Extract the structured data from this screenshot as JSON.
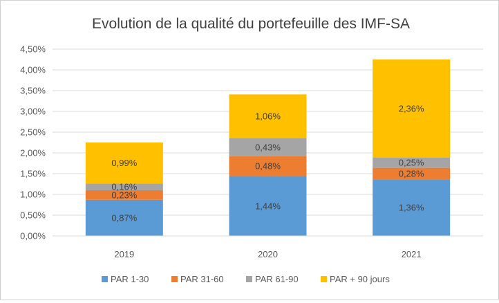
{
  "chart_data": {
    "type": "bar",
    "stacked": true,
    "title": "Evolution de la qualité du portefeuille des IMF-SA",
    "categories": [
      "2019",
      "2020",
      "2021"
    ],
    "ylim": [
      0,
      4.5
    ],
    "ytick_step": 0.5,
    "ytick_labels": [
      "0,00%",
      "0,50%",
      "1,00%",
      "1,50%",
      "2,00%",
      "2,50%",
      "3,00%",
      "3,50%",
      "4,00%",
      "4,50%"
    ],
    "grid": true,
    "legend_position": "bottom",
    "series": [
      {
        "name": "PAR 1-30",
        "color": "#5b9bd5",
        "values": [
          0.87,
          1.44,
          1.36
        ],
        "labels": [
          "0,87%",
          "1,44%",
          "1,36%"
        ]
      },
      {
        "name": "PAR 31-60",
        "color": "#ed7d31",
        "values": [
          0.23,
          0.48,
          0.28
        ],
        "labels": [
          "0,23%",
          "0,48%",
          "0,28%"
        ]
      },
      {
        "name": "PAR 61-90",
        "color": "#a5a5a5",
        "values": [
          0.16,
          0.43,
          0.25
        ],
        "labels": [
          "0,16%",
          "0,43%",
          "0,25%"
        ]
      },
      {
        "name": "PAR + 90 jours",
        "color": "#ffc000",
        "values": [
          0.99,
          1.06,
          2.36
        ],
        "labels": [
          "0,99%",
          "1,06%",
          "2,36%"
        ]
      }
    ]
  }
}
